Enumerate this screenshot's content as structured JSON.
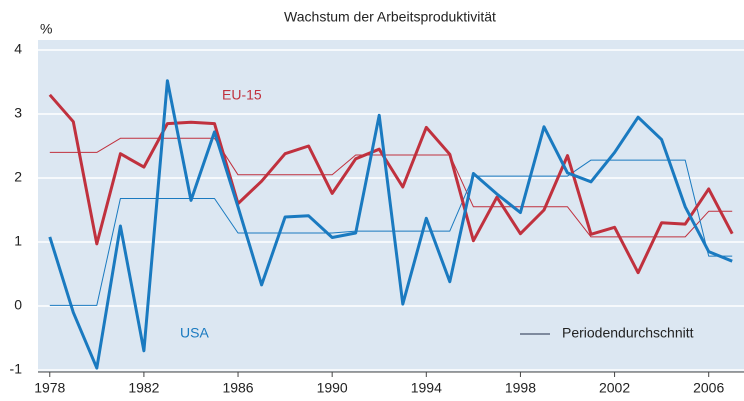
{
  "chart_data": {
    "type": "line",
    "title": "Wachstum der Arbeitsproduktivität",
    "y_unit": "%",
    "x": [
      1978,
      1979,
      1980,
      1981,
      1982,
      1983,
      1984,
      1985,
      1986,
      1987,
      1988,
      1989,
      1990,
      1991,
      1992,
      1993,
      1994,
      1995,
      1996,
      1997,
      1998,
      1999,
      2000,
      2001,
      2002,
      2003,
      2004,
      2005,
      2006,
      2007
    ],
    "series": [
      {
        "name": "EU-15",
        "color": "#c0313e",
        "width": 3,
        "values": [
          3.3,
          2.88,
          0.97,
          2.38,
          2.17,
          2.85,
          2.87,
          2.85,
          1.6,
          1.95,
          2.38,
          2.5,
          1.76,
          2.3,
          2.45,
          1.86,
          2.79,
          2.37,
          1.02,
          1.7,
          1.13,
          1.5,
          2.35,
          1.12,
          1.23,
          0.52,
          1.3,
          1.28,
          1.83,
          1.13
        ]
      },
      {
        "name": "USA",
        "color": "#1a7ac0",
        "width": 3,
        "values": [
          1.08,
          -0.1,
          -0.97,
          1.25,
          -0.7,
          3.52,
          1.65,
          2.72,
          1.55,
          0.33,
          1.39,
          1.41,
          1.07,
          1.14,
          2.98,
          0.03,
          1.37,
          0.38,
          2.07,
          1.75,
          1.46,
          2.8,
          2.08,
          1.94,
          2.4,
          2.95,
          2.6,
          1.55,
          0.85,
          0.7
        ]
      },
      {
        "color": "#c0313e",
        "width": 1,
        "values": [
          2.4,
          2.4,
          2.4,
          2.62,
          2.62,
          2.62,
          2.62,
          2.62,
          2.05,
          2.05,
          2.05,
          2.05,
          2.05,
          2.36,
          2.36,
          2.36,
          2.36,
          2.36,
          1.55,
          1.55,
          1.55,
          1.55,
          1.55,
          1.08,
          1.08,
          1.08,
          1.08,
          1.08,
          1.48,
          1.48
        ]
      },
      {
        "color": "#1a7ac0",
        "width": 1,
        "values": [
          0.01,
          0.01,
          0.01,
          1.68,
          1.68,
          1.68,
          1.68,
          1.68,
          1.14,
          1.14,
          1.14,
          1.14,
          1.14,
          1.17,
          1.17,
          1.17,
          1.17,
          1.17,
          2.03,
          2.03,
          2.03,
          2.03,
          2.03,
          2.28,
          2.28,
          2.28,
          2.28,
          2.28,
          0.78,
          0.78
        ]
      }
    ],
    "legend": {
      "label": "Periodendurchschnitt",
      "color": "#1f2d4a"
    },
    "xlim": [
      1977.5,
      2007.5
    ],
    "xticks": [
      1978,
      1982,
      1986,
      1990,
      1994,
      1998,
      2002,
      2006
    ],
    "ylim": [
      -1,
      4
    ],
    "yticks": [
      -1,
      0,
      1,
      2,
      3,
      4
    ],
    "grid": true
  }
}
